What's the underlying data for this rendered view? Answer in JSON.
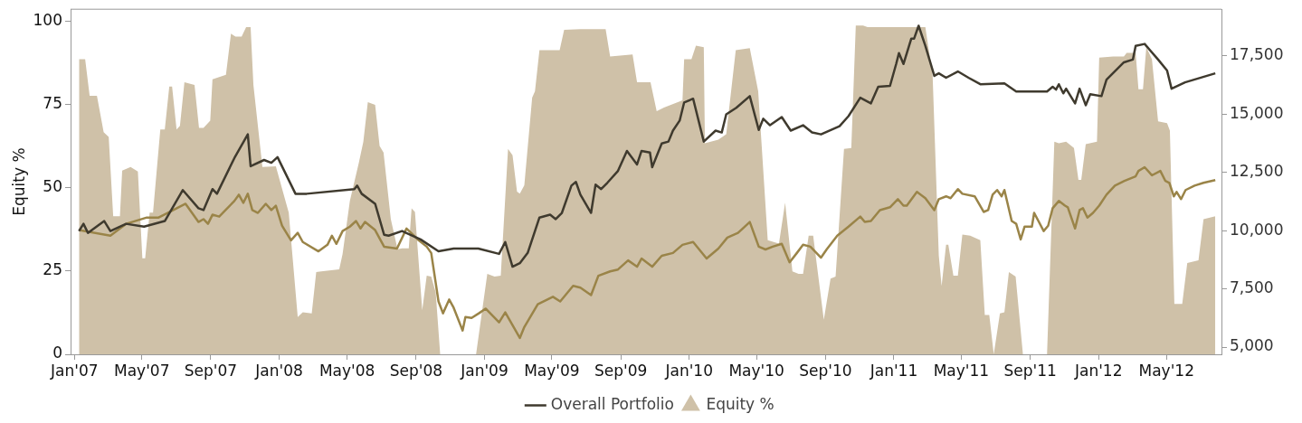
{
  "chart_data": {
    "type": "line",
    "ylabel": "Equity %",
    "legend": "bottom",
    "marker": "none",
    "line_style": "solid",
    "grid": false,
    "xlim": [
      "2006-12-25",
      "2012-08-07"
    ],
    "ylim": [
      0,
      103.5
    ],
    "yticks": [
      0,
      25,
      50,
      75,
      100
    ],
    "y2lim": [
      4690,
      19500
    ],
    "y2ticks": [
      {
        "value": 5000,
        "label": "5,000"
      },
      {
        "value": 7500,
        "label": "7,500"
      },
      {
        "value": 10000,
        "label": "10,000"
      },
      {
        "value": 12500,
        "label": "12,500"
      },
      {
        "value": 15000,
        "label": "15,000"
      },
      {
        "value": 17500,
        "label": "17,500"
      }
    ],
    "xticks": [
      {
        "value": "2007-01",
        "label": "Jan'07"
      },
      {
        "value": "2007-05",
        "label": "May'07"
      },
      {
        "value": "2007-09",
        "label": "Sep'07"
      },
      {
        "value": "2008-01",
        "label": "Jan'08"
      },
      {
        "value": "2008-05",
        "label": "May'08"
      },
      {
        "value": "2008-09",
        "label": "Sep'08"
      },
      {
        "value": "2009-01",
        "label": "Jan'09"
      },
      {
        "value": "2009-05",
        "label": "May'09"
      },
      {
        "value": "2009-09",
        "label": "Sep'09"
      },
      {
        "value": "2010-01",
        "label": "Jan'10"
      },
      {
        "value": "2010-05",
        "label": "May'10"
      },
      {
        "value": "2010-09",
        "label": "Sep'10"
      },
      {
        "value": "2011-01",
        "label": "Jan'11"
      },
      {
        "value": "2011-05",
        "label": "May'11"
      },
      {
        "value": "2011-09",
        "label": "Sep'11"
      },
      {
        "value": "2012-01",
        "label": "Jan'12"
      },
      {
        "value": "2012-05",
        "label": "May'12"
      }
    ],
    "series": [
      {
        "name": "Overall Portfolio",
        "type": "line",
        "axis": "y2",
        "color": "#3f3a2e",
        "x": [
          "2007-01-09",
          "2007-01-17",
          "2007-01-25",
          "2007-02-23",
          "2007-03-06",
          "2007-04-03",
          "2007-05-05",
          "2007-06-11",
          "2007-07-13",
          "2007-08-10",
          "2007-08-19",
          "2007-09-04",
          "2007-09-12",
          "2007-10-13",
          "2007-11-06",
          "2007-11-11",
          "2007-12-05",
          "2007-12-18",
          "2007-12-29",
          "2008-01-30",
          "2008-02-19",
          "2008-05-14",
          "2008-05-19",
          "2008-05-27",
          "2008-06-20",
          "2008-07-06",
          "2008-07-14",
          "2008-08-07",
          "2008-09-09",
          "2008-10-11",
          "2008-11-07",
          "2008-12-21",
          "2009-01-27",
          "2009-02-07",
          "2009-02-20",
          "2009-03-05",
          "2009-03-19",
          "2009-04-09",
          "2009-04-28",
          "2009-05-08",
          "2009-05-19",
          "2009-06-05",
          "2009-06-13",
          "2009-06-21",
          "2009-07-10",
          "2009-07-18",
          "2009-07-28",
          "2009-08-08",
          "2009-08-27",
          "2009-09-12",
          "2009-09-30",
          "2009-10-08",
          "2009-10-23",
          "2009-10-27",
          "2009-11-13",
          "2009-11-25",
          "2009-12-03",
          "2009-12-15",
          "2009-12-23",
          "2010-01-08",
          "2010-01-27",
          "2010-02-17",
          "2010-02-28",
          "2010-03-08",
          "2010-03-26",
          "2010-04-19",
          "2010-05-05",
          "2010-05-13",
          "2010-05-25",
          "2010-06-15",
          "2010-07-01",
          "2010-07-23",
          "2010-08-08",
          "2010-08-24",
          "2010-09-26",
          "2010-10-12",
          "2010-11-02",
          "2010-11-21",
          "2010-12-04",
          "2010-12-25",
          "2011-01-05",
          "2011-01-10",
          "2011-01-18",
          "2011-02-01",
          "2011-02-06",
          "2011-02-14",
          "2011-02-26",
          "2011-03-14",
          "2011-03-22",
          "2011-04-04",
          "2011-04-25",
          "2011-05-14",
          "2011-06-04",
          "2011-07-17",
          "2011-08-07",
          "2011-10-01",
          "2011-10-11",
          "2011-10-17",
          "2011-10-22",
          "2011-10-30",
          "2011-11-04",
          "2011-11-20",
          "2011-11-28",
          "2011-12-09",
          "2011-12-17",
          "2012-01-06",
          "2012-01-15",
          "2012-02-15",
          "2012-03-02",
          "2012-03-07",
          "2012-03-23",
          "2012-04-16",
          "2012-05-02",
          "2012-05-10",
          "2012-06-03",
          "2012-07-27"
        ],
        "values": [
          9980,
          10290,
          9900,
          10410,
          9980,
          10290,
          10170,
          10410,
          11740,
          10960,
          10880,
          11780,
          11580,
          13110,
          14130,
          12760,
          13030,
          12910,
          13150,
          11580,
          11580,
          11780,
          11930,
          11580,
          11150,
          9820,
          9780,
          9980,
          9620,
          9110,
          9230,
          9230,
          9000,
          9510,
          8450,
          8600,
          9040,
          10560,
          10680,
          10490,
          10760,
          11930,
          12090,
          11540,
          10760,
          11970,
          11780,
          12050,
          12560,
          13420,
          12840,
          13420,
          13350,
          12720,
          13740,
          13820,
          14290,
          14720,
          15500,
          15660,
          13820,
          14290,
          14210,
          14990,
          15270,
          15770,
          14320,
          14800,
          14520,
          14870,
          14290,
          14520,
          14210,
          14130,
          14480,
          14910,
          15700,
          15460,
          16170,
          16210,
          17150,
          17620,
          17150,
          18240,
          18240,
          18790,
          17930,
          16640,
          16750,
          16560,
          16830,
          16560,
          16280,
          16320,
          15970,
          15970,
          16170,
          16050,
          16280,
          15890,
          16090,
          15460,
          16090,
          15380,
          15850,
          15770,
          16480,
          17220,
          17340,
          17930,
          18010,
          17340,
          16870,
          16090,
          16360,
          16750
        ]
      },
      {
        "type": "line",
        "axis": "y2",
        "color": "#9a8448",
        "x": [
          "2007-01-09",
          "2007-03-06",
          "2007-04-03",
          "2007-05-10",
          "2007-05-31",
          "2007-06-16",
          "2007-07-18",
          "2007-08-10",
          "2007-08-19",
          "2007-08-27",
          "2007-09-04",
          "2007-09-16",
          "2007-10-13",
          "2007-10-21",
          "2007-10-29",
          "2007-11-06",
          "2007-11-14",
          "2007-11-24",
          "2007-12-08",
          "2007-12-18",
          "2007-12-26",
          "2008-01-06",
          "2008-01-22",
          "2008-02-03",
          "2008-02-12",
          "2008-03-11",
          "2008-03-27",
          "2008-04-04",
          "2008-04-12",
          "2008-04-23",
          "2008-05-06",
          "2008-05-17",
          "2008-05-25",
          "2008-06-02",
          "2008-06-20",
          "2008-07-06",
          "2008-07-29",
          "2008-08-15",
          "2008-09-04",
          "2008-09-20",
          "2008-09-28",
          "2008-10-11",
          "2008-10-19",
          "2008-10-30",
          "2008-11-07",
          "2008-11-23",
          "2008-11-28",
          "2008-12-09",
          "2008-12-22",
          "2009-01-03",
          "2009-01-27",
          "2009-02-07",
          "2009-03-05",
          "2009-03-13",
          "2009-04-06",
          "2009-05-03",
          "2009-05-16",
          "2009-06-08",
          "2009-06-21",
          "2009-07-10",
          "2009-07-23",
          "2009-08-13",
          "2009-08-27",
          "2009-09-14",
          "2009-09-30",
          "2009-10-08",
          "2009-10-27",
          "2009-11-13",
          "2009-12-03",
          "2009-12-20",
          "2010-01-08",
          "2010-02-01",
          "2010-02-22",
          "2010-03-10",
          "2010-03-29",
          "2010-04-19",
          "2010-05-05",
          "2010-05-17",
          "2010-05-30",
          "2010-06-15",
          "2010-06-29",
          "2010-07-12",
          "2010-07-23",
          "2010-08-05",
          "2010-08-24",
          "2010-09-03",
          "2010-09-22",
          "2010-10-12",
          "2010-11-02",
          "2010-11-10",
          "2010-11-21",
          "2010-12-07",
          "2010-12-25",
          "2011-01-08",
          "2011-01-18",
          "2011-01-24",
          "2011-02-11",
          "2011-02-26",
          "2011-03-14",
          "2011-03-22",
          "2011-04-04",
          "2011-04-12",
          "2011-04-25",
          "2011-05-03",
          "2011-05-25",
          "2011-06-10",
          "2011-06-18",
          "2011-06-26",
          "2011-07-04",
          "2011-07-12",
          "2011-07-17",
          "2011-07-30",
          "2011-08-07",
          "2011-08-15",
          "2011-08-22",
          "2011-09-04",
          "2011-09-08",
          "2011-09-25",
          "2011-10-03",
          "2011-10-11",
          "2011-10-22",
          "2011-11-02",
          "2011-11-07",
          "2011-11-20",
          "2011-11-28",
          "2011-12-04",
          "2011-12-12",
          "2011-12-22",
          "2012-01-02",
          "2012-01-15",
          "2012-01-30",
          "2012-02-16",
          "2012-03-07",
          "2012-03-12",
          "2012-03-23",
          "2012-04-05",
          "2012-04-20",
          "2012-04-29",
          "2012-05-06",
          "2012-05-14",
          "2012-05-19",
          "2012-05-27",
          "2012-06-04",
          "2012-06-20",
          "2012-07-06",
          "2012-07-27"
        ],
        "values": [
          10020,
          9780,
          10290,
          10560,
          10560,
          10760,
          11150,
          10370,
          10490,
          10290,
          10680,
          10600,
          11270,
          11540,
          11190,
          11580,
          10880,
          10760,
          11150,
          10880,
          11070,
          10210,
          9580,
          9900,
          9510,
          9110,
          9390,
          9780,
          9430,
          9980,
          10170,
          10410,
          10090,
          10370,
          10020,
          9310,
          9230,
          10090,
          9620,
          9310,
          9040,
          6960,
          6450,
          7040,
          6690,
          5710,
          6290,
          6250,
          6450,
          6650,
          6060,
          6490,
          5390,
          5860,
          6840,
          7160,
          6960,
          7630,
          7550,
          7230,
          8060,
          8250,
          8330,
          8720,
          8450,
          8800,
          8450,
          8920,
          9040,
          9390,
          9510,
          8800,
          9230,
          9700,
          9900,
          10370,
          9310,
          9190,
          9310,
          9430,
          8640,
          9040,
          9390,
          9310,
          8840,
          9190,
          9780,
          10170,
          10600,
          10370,
          10410,
          10880,
          11000,
          11350,
          11070,
          11070,
          11660,
          11390,
          10880,
          11350,
          11470,
          11390,
          11780,
          11580,
          11470,
          10800,
          10880,
          11540,
          11740,
          11470,
          11740,
          10410,
          10290,
          9620,
          10170,
          10170,
          10760,
          9980,
          10210,
          10960,
          11270,
          11070,
          11000,
          10090,
          10880,
          10960,
          10560,
          10760,
          11070,
          11540,
          11930,
          12130,
          12330,
          12560,
          12720,
          12370,
          12560,
          12130,
          12050,
          11470,
          11660,
          11350,
          11740,
          11930,
          12050,
          12170
        ]
      },
      {
        "name": "Equity %",
        "type": "area",
        "color": "#cfc1a8",
        "x": [
          "2007-01-09",
          "2007-01-20",
          "2007-01-28",
          "2007-02-10",
          "2007-02-22",
          "2007-03-03",
          "2007-03-11",
          "2007-03-23",
          "2007-03-27",
          "2007-04-11",
          "2007-04-24",
          "2007-05-02",
          "2007-05-07",
          "2007-05-15",
          "2007-05-21",
          "2007-06-03",
          "2007-06-11",
          "2007-06-19",
          "2007-06-24",
          "2007-07-02",
          "2007-07-08",
          "2007-07-16",
          "2007-08-03",
          "2007-08-11",
          "2007-08-19",
          "2007-08-31",
          "2007-09-04",
          "2007-09-28",
          "2007-10-07",
          "2007-10-15",
          "2007-10-26",
          "2007-11-03",
          "2007-11-11",
          "2007-11-16",
          "2007-12-02",
          "2007-12-26",
          "2008-01-18",
          "2008-02-03",
          "2008-02-12",
          "2008-02-28",
          "2008-03-07",
          "2008-03-16",
          "2008-04-17",
          "2008-04-23",
          "2008-05-06",
          "2008-05-22",
          "2008-05-30",
          "2008-06-07",
          "2008-06-20",
          "2008-06-28",
          "2008-07-05",
          "2008-07-18",
          "2008-07-30",
          "2008-08-07",
          "2008-08-19",
          "2008-08-24",
          "2008-08-30",
          "2008-09-12",
          "2008-09-20",
          "2008-09-28",
          "2008-10-06",
          "2008-10-14",
          "2008-12-17",
          "2009-01-06",
          "2009-01-19",
          "2009-01-30",
          "2009-02-12",
          "2009-02-20",
          "2009-02-28",
          "2009-03-05",
          "2009-03-13",
          "2009-03-27",
          "2009-04-01",
          "2009-04-09",
          "2009-05-15",
          "2009-05-23",
          "2009-06-21",
          "2009-08-05",
          "2009-08-13",
          "2009-09-22",
          "2009-09-30",
          "2009-10-24",
          "2009-11-04",
          "2009-11-17",
          "2009-12-20",
          "2009-12-23",
          "2010-01-05",
          "2010-01-13",
          "2010-01-27",
          "2010-01-29",
          "2010-02-22",
          "2010-03-08",
          "2010-03-25",
          "2010-04-19",
          "2010-05-04",
          "2010-05-21",
          "2010-06-10",
          "2010-06-21",
          "2010-07-04",
          "2010-07-15",
          "2010-07-23",
          "2010-08-02",
          "2010-08-10",
          "2010-08-29",
          "2010-09-10",
          "2010-09-19",
          "2010-10-04",
          "2010-10-17",
          "2010-10-25",
          "2010-11-07",
          "2010-11-15",
          "2010-12-31",
          "2011-02-26",
          "2011-03-11",
          "2011-03-22",
          "2011-03-27",
          "2011-04-04",
          "2011-04-08",
          "2011-04-17",
          "2011-04-25",
          "2011-05-03",
          "2011-05-17",
          "2011-06-04",
          "2011-06-12",
          "2011-06-20",
          "2011-06-28",
          "2011-07-09",
          "2011-07-17",
          "2011-07-25",
          "2011-08-06",
          "2011-08-19",
          "2011-10-01",
          "2011-10-14",
          "2011-10-22",
          "2011-11-04",
          "2011-11-18",
          "2011-11-26",
          "2011-12-01",
          "2011-12-09",
          "2011-12-29",
          "2012-01-02",
          "2012-01-27",
          "2012-02-15",
          "2012-02-20",
          "2012-03-07",
          "2012-03-12",
          "2012-03-20",
          "2012-03-26",
          "2012-04-05",
          "2012-04-16",
          "2012-05-02",
          "2012-05-07",
          "2012-05-15",
          "2012-05-29",
          "2012-06-07",
          "2012-06-27",
          "2012-07-06",
          "2012-07-27"
        ],
        "values": [
          88.5,
          88.5,
          77.5,
          77.5,
          66.6,
          65.2,
          41.4,
          41.4,
          55.1,
          56.2,
          54.8,
          28.8,
          28.8,
          42.5,
          42.5,
          67.4,
          67.4,
          80.3,
          80.3,
          67.4,
          68.5,
          81.6,
          80.8,
          67.9,
          67.9,
          70.1,
          82.5,
          83.8,
          96.2,
          95.3,
          95.3,
          98.1,
          98.1,
          80.8,
          56.2,
          56.4,
          42.5,
          11.2,
          12.6,
          12.3,
          24.7,
          24.9,
          25.5,
          30.1,
          46,
          57.5,
          63.8,
          75.6,
          74.8,
          62.5,
          60.5,
          40.5,
          31.5,
          31.8,
          31.8,
          43.8,
          42.7,
          13.2,
          23.6,
          23.3,
          18.6,
          0,
          0,
          24.1,
          23.3,
          23.6,
          61.6,
          59.7,
          48.8,
          48.2,
          50.7,
          77,
          78.9,
          91.2,
          91.2,
          97.3,
          97.5,
          97.5,
          89.3,
          89.9,
          81.6,
          81.6,
          72.9,
          74,
          76.2,
          88.5,
          88.5,
          92.6,
          92.1,
          63.3,
          64.4,
          66,
          91.2,
          91.8,
          78.9,
          34.2,
          33.2,
          45.5,
          24.9,
          24.1,
          24.1,
          35.6,
          35.6,
          10.4,
          22.7,
          23.3,
          61.6,
          61.9,
          98.6,
          98.6,
          98.1,
          98.1,
          98.1,
          83.6,
          29.6,
          20.5,
          32.9,
          32.9,
          23.6,
          23.6,
          35.9,
          35.6,
          34.2,
          11.8,
          11.8,
          0,
          12.3,
          12.6,
          24.7,
          23.3,
          0,
          0,
          63.8,
          63.3,
          63.8,
          61.9,
          52.3,
          52.3,
          63,
          63.8,
          89,
          89.3,
          89.3,
          90.4,
          90.4,
          79.5,
          79.5,
          92.1,
          88.5,
          69.9,
          69.3,
          67.1,
          15.1,
          15.1,
          27.4,
          28.2,
          40.5,
          41.4
        ]
      }
    ]
  }
}
